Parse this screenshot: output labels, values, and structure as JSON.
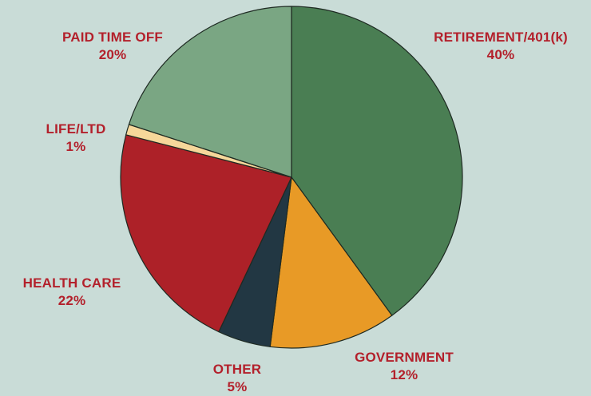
{
  "chart_data": {
    "type": "pie",
    "title": "",
    "slices": [
      {
        "label": "RETIREMENT/401(k)",
        "value": 40,
        "value_label": "40%",
        "color": "#4a7e53"
      },
      {
        "label": "GOVERNMENT",
        "value": 12,
        "value_label": "12%",
        "color": "#e89a26"
      },
      {
        "label": "OTHER",
        "value": 5,
        "value_label": "5%",
        "color": "#223743"
      },
      {
        "label": "HEALTH CARE",
        "value": 22,
        "value_label": "22%",
        "color": "#ad2128"
      },
      {
        "label": "LIFE/LTD",
        "value": 1,
        "value_label": "1%",
        "color": "#f6d79a"
      },
      {
        "label": "PAID TIME OFF",
        "value": 20,
        "value_label": "20%",
        "color": "#7aa683"
      }
    ],
    "start_angle": "12 o'clock",
    "direction": "clockwise",
    "label_color": "#b3202b",
    "background_color": "#c9dcd7"
  }
}
